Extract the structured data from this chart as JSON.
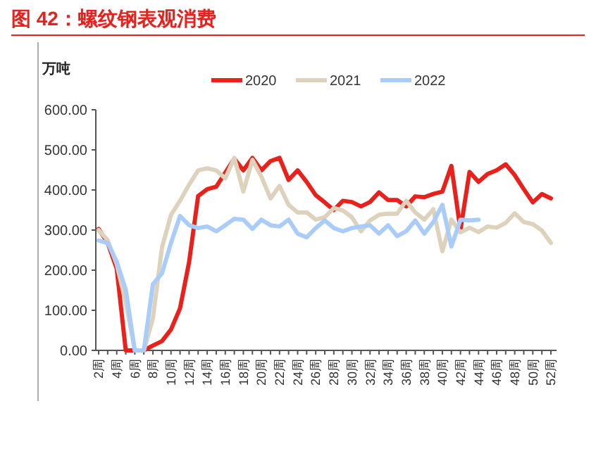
{
  "chart_data": {
    "type": "line",
    "title": "图 42：螺纹钢表观消费",
    "ylabel": "万吨",
    "categories": [
      "2周",
      null,
      "4周",
      null,
      "6周",
      null,
      "8周",
      null,
      "10周",
      null,
      "12周",
      null,
      "14周",
      null,
      "16周",
      null,
      "18周",
      null,
      "20周",
      null,
      "22周",
      null,
      "24周",
      null,
      "26周",
      null,
      "28周",
      null,
      "30周",
      null,
      "32周",
      null,
      "34周",
      null,
      "36周",
      null,
      "38周",
      null,
      "40周",
      null,
      "42周",
      null,
      "44周",
      null,
      "46周",
      null,
      "48周",
      null,
      "50周",
      null,
      "52周"
    ],
    "series": [
      {
        "name": "2020",
        "color": "#e8211d",
        "values": [
          303,
          268,
          204,
          0,
          0,
          0,
          12,
          23,
          52,
          105,
          220,
          385,
          402,
          408,
          443,
          478,
          449,
          480,
          449,
          472,
          480,
          425,
          449,
          420,
          387,
          369,
          350,
          373,
          370,
          359,
          370,
          394,
          375,
          375,
          359,
          384,
          382,
          390,
          396,
          460,
          300,
          445,
          420,
          440,
          449,
          464,
          437,
          402,
          369,
          390,
          379
        ]
      },
      {
        "name": "2021",
        "color": "#ddd3bd",
        "values": [
          300,
          275,
          215,
          120,
          0,
          0,
          80,
          256,
          338,
          373,
          413,
          449,
          454,
          449,
          429,
          480,
          396,
          475,
          433,
          379,
          410,
          363,
          344,
          344,
          326,
          332,
          355,
          349,
          332,
          297,
          324,
          338,
          341,
          341,
          373,
          344,
          326,
          352,
          247,
          326,
          294,
          306,
          295,
          309,
          306,
          318,
          342,
          320,
          315,
          299,
          268
        ]
      },
      {
        "name": "2022",
        "color": "#a9cdf8",
        "values": [
          274,
          268,
          221,
          151,
          0,
          0,
          165,
          192,
          268,
          335,
          312,
          305,
          309,
          297,
          312,
          328,
          326,
          303,
          326,
          312,
          309,
          326,
          291,
          282,
          305,
          324,
          305,
          297,
          305,
          309,
          312,
          291,
          312,
          285,
          297,
          324,
          291,
          320,
          363,
          259,
          326,
          324,
          326,
          null,
          null,
          null,
          null,
          null,
          null,
          null,
          null
        ]
      }
    ],
    "ylim": [
      0,
      600
    ],
    "yticks": [
      {
        "value": 0,
        "label": "0.00"
      },
      {
        "value": 100,
        "label": "100.00"
      },
      {
        "value": 200,
        "label": "200.00"
      },
      {
        "value": 300,
        "label": "300.00"
      },
      {
        "value": 400,
        "label": "400.00"
      },
      {
        "value": 500,
        "label": "500.00"
      },
      {
        "value": 600,
        "label": "600.00"
      }
    ],
    "legend": "top",
    "grid": false,
    "marker": "none",
    "line_style": "solid"
  }
}
